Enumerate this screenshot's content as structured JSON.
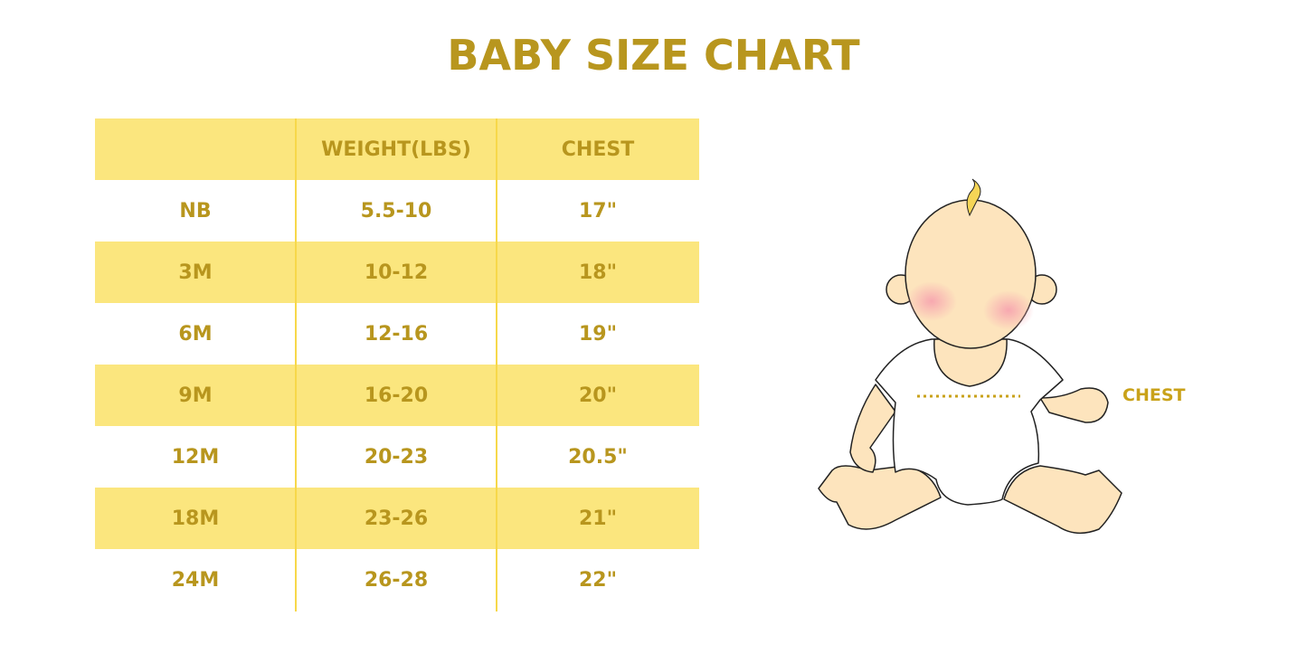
{
  "title": "BABY SIZE CHART",
  "colors": {
    "accent_text": "#b8961e",
    "stripe": "#fbe67e",
    "divider": "#f7d84a",
    "chest_label": "#c9a21a"
  },
  "table": {
    "headers": [
      "",
      "WEIGHT(LBS)",
      "CHEST"
    ],
    "rows": [
      [
        "NB",
        "5.5-10",
        "17\""
      ],
      [
        "3M",
        "10-12",
        "18\""
      ],
      [
        "6M",
        "12-16",
        "19\""
      ],
      [
        "9M",
        "16-20",
        "20\""
      ],
      [
        "12M",
        "20-23",
        "20.5\""
      ],
      [
        "18M",
        "23-26",
        "21\""
      ],
      [
        "24M",
        "26-28",
        "22\""
      ]
    ]
  },
  "illustration": {
    "chest_label": "CHEST",
    "icon": "baby-measurement-illustration"
  }
}
